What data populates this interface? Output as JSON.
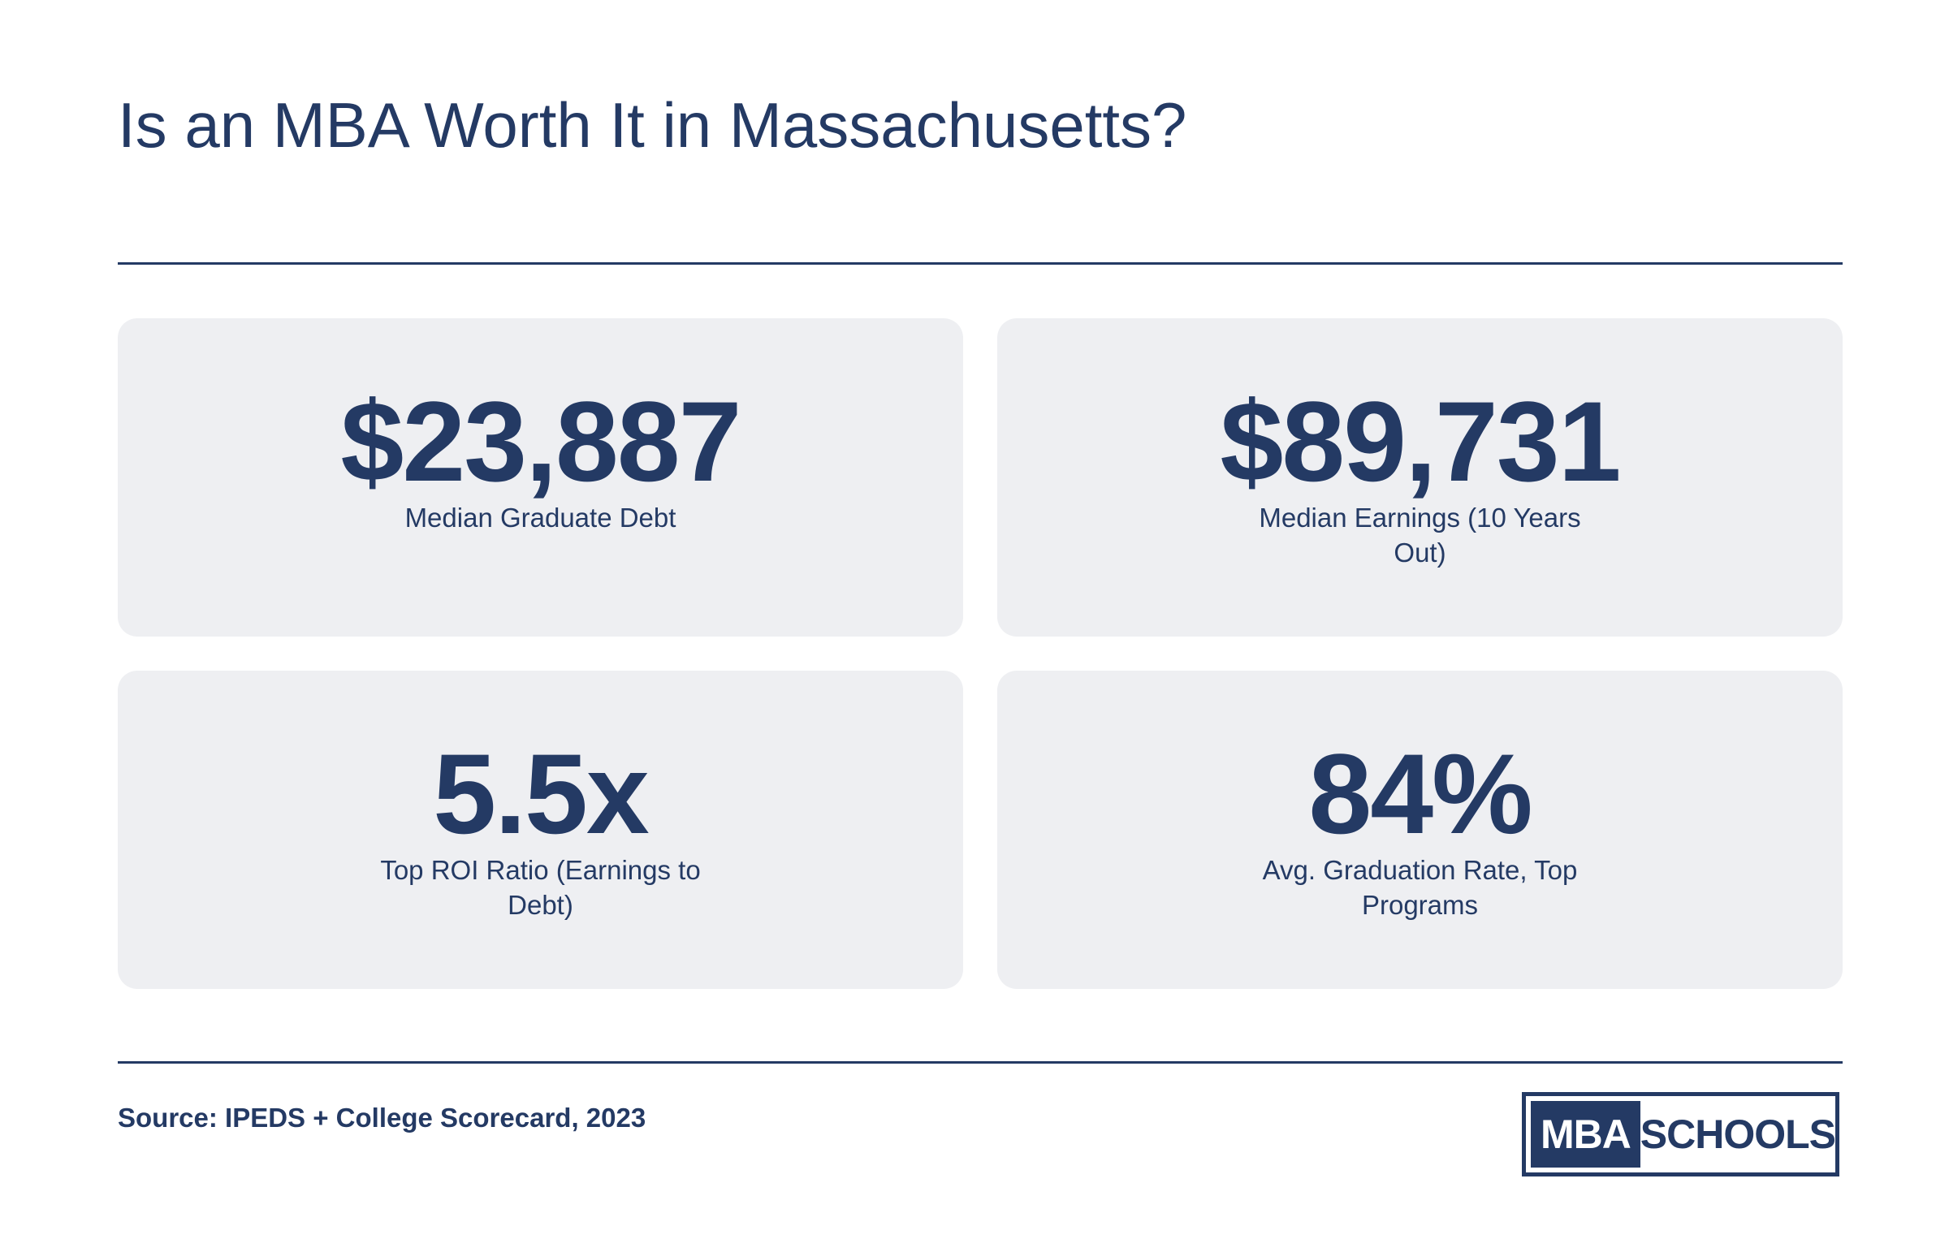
{
  "title": "Is an MBA Worth It in Massachusetts?",
  "stats": [
    {
      "value": "$23,887",
      "label": "Median Graduate Debt"
    },
    {
      "value": "$89,731",
      "label": "Median Earnings (10 Years Out)"
    },
    {
      "value": "5.5x",
      "label": "Top ROI Ratio (Earnings to Debt)"
    },
    {
      "value": "84%",
      "label": "Avg. Graduation Rate, Top Programs"
    }
  ],
  "source": "Source: IPEDS + College Scorecard, 2023",
  "logo": {
    "part1": "MBA",
    "part2": "SCHOOLS"
  },
  "colors": {
    "primary": "#243a64",
    "card_bg": "#eeeff2",
    "background": "#ffffff"
  }
}
